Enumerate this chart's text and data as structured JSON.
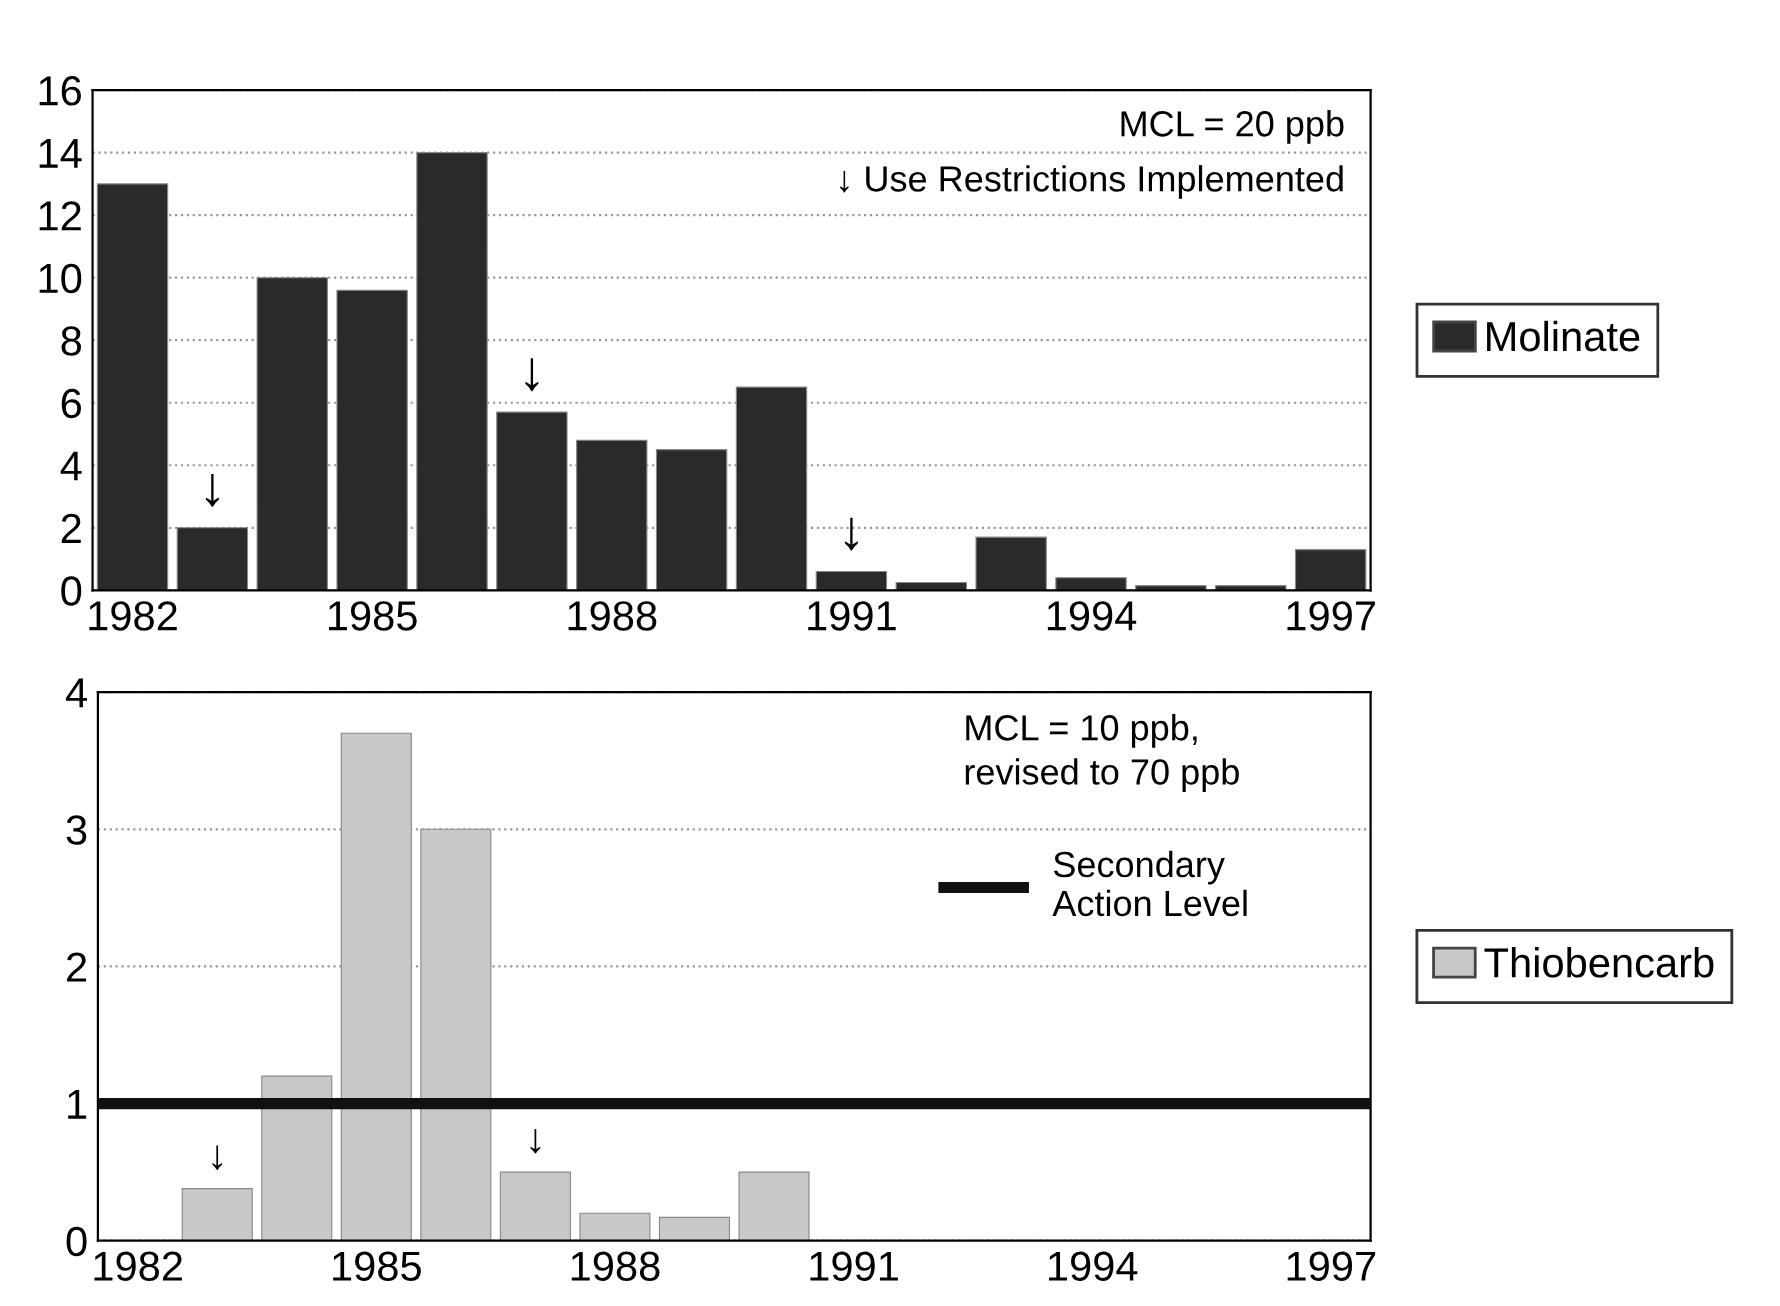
{
  "chart_data": [
    {
      "type": "bar",
      "x": [
        1982,
        1983,
        1984,
        1985,
        1986,
        1987,
        1988,
        1989,
        1990,
        1991,
        1992,
        1993,
        1994,
        1995,
        1996,
        1997
      ],
      "series": [
        {
          "name": "Molinate",
          "color": "#2a2a2a",
          "values": [
            13,
            2,
            10,
            9.6,
            14,
            5.7,
            4.8,
            4.5,
            6.5,
            0.6,
            0.25,
            1.7,
            0.4,
            0.15,
            0.15,
            1.3
          ]
        }
      ],
      "xlim": [
        1981.5,
        1997.5
      ],
      "xticks": [
        1982,
        1985,
        1988,
        1991,
        1994,
        1997
      ],
      "ylim": [
        0,
        16
      ],
      "yticks": [
        0,
        2,
        4,
        6,
        8,
        10,
        12,
        14,
        16
      ],
      "grid": "y",
      "legend": "right",
      "annotations": [
        "MCL = 20 ppb",
        "↓ Use Restrictions Implemented",
        {
          "text": "↓",
          "x": 1983,
          "y": 2
        },
        {
          "text": "↓",
          "x": 1987,
          "y": 5.7
        },
        {
          "text": "↓",
          "x": 1991,
          "y": 0.6
        }
      ]
    },
    {
      "type": "bar",
      "x": [
        1983,
        1984,
        1985,
        1986,
        1987,
        1988,
        1989,
        1990
      ],
      "series": [
        {
          "name": "Thiobencarb",
          "color": "#c8c8c8",
          "values": [
            0.38,
            1.2,
            3.7,
            3.0,
            0.5,
            0.2,
            0.17,
            0.5
          ]
        }
      ],
      "xlim": [
        1981.5,
        1997.5
      ],
      "xticks": [
        1982,
        1985,
        1988,
        1991,
        1994,
        1997
      ],
      "ylim": [
        0,
        4
      ],
      "yticks": [
        0,
        1,
        2,
        3,
        4
      ],
      "grid": "y",
      "legend": "right",
      "ref_lines": [
        {
          "axis": "y",
          "value": 1,
          "label": "Secondary\nAction Level",
          "color": "#111111",
          "line_style": "solid"
        }
      ],
      "annotations": [
        "MCL = 10 ppb,\nrevised to 70 ppb",
        {
          "text": "↓",
          "x": 1983,
          "y": 0.38
        },
        {
          "text": "↓",
          "x": 1987,
          "y": 0.5
        }
      ]
    }
  ]
}
